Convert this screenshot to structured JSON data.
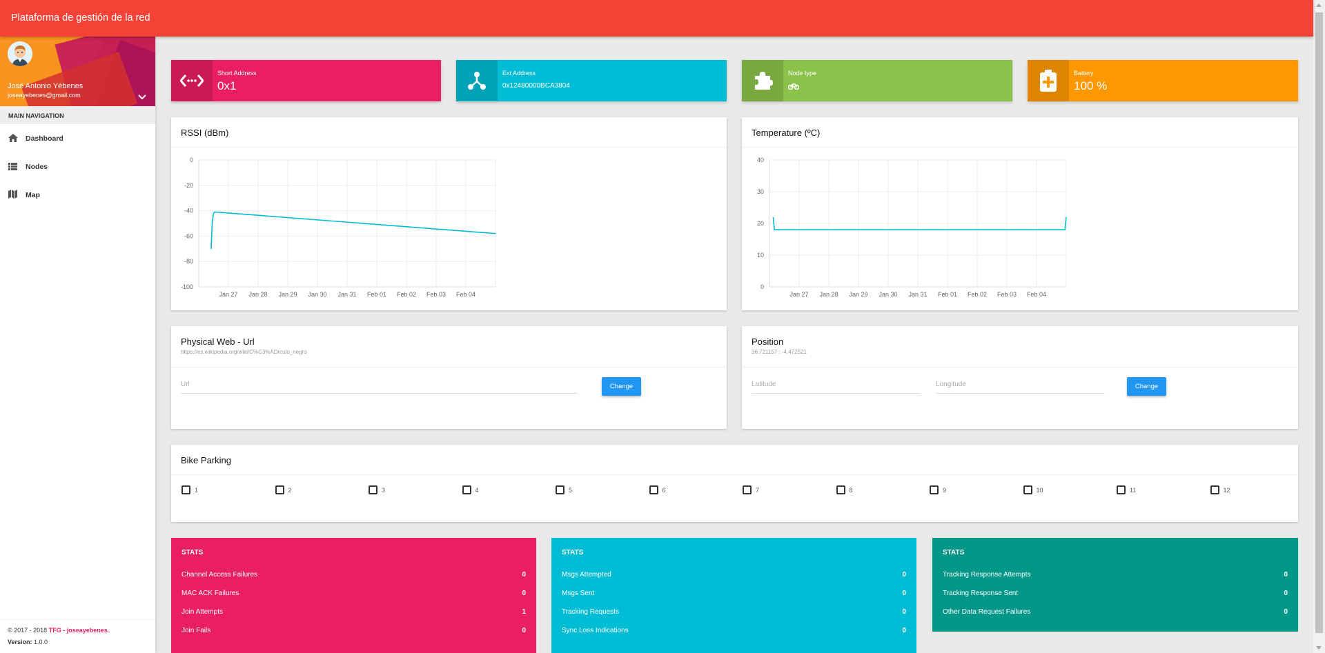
{
  "app": {
    "title": "Plataforma de gestión de la red"
  },
  "user": {
    "name": "José Antonio Yébenes",
    "email": "joseayebenes@gmail.com"
  },
  "nav": {
    "header": "MAIN NAVIGATION",
    "items": [
      {
        "label": "Dashboard",
        "icon": "home-icon"
      },
      {
        "label": "Nodes",
        "icon": "list-icon"
      },
      {
        "label": "Map",
        "icon": "map-icon"
      }
    ]
  },
  "footer": {
    "copyright": "© 2017 - 2018",
    "brand": "TFG - joseayebenes.",
    "version_label": "Version:",
    "version": "1.0.0"
  },
  "info_boxes": [
    {
      "label": "Short Address",
      "value": "0x1",
      "color": "#e91e63",
      "icon": "code-icon"
    },
    {
      "label": "Ext Address",
      "value": "0x12480000BCA3804",
      "color": "#00bcd4",
      "icon": "share-icon"
    },
    {
      "label": "Node type",
      "value": "",
      "color": "#8bc34a",
      "icon": "puzzle-icon",
      "value_icon": "bicycle-icon"
    },
    {
      "label": "Battery",
      "value": "100 %",
      "color": "#ff9800",
      "icon": "battery-icon"
    }
  ],
  "charts": {
    "rssi": {
      "title": "RSSI (dBm)"
    },
    "temperature": {
      "title": "Temperature (ºC)"
    }
  },
  "chart_data": [
    {
      "type": "line",
      "title": "RSSI (dBm)",
      "x_ticks": [
        "Jan 27",
        "Jan 28",
        "Jan 29",
        "Jan 30",
        "Jan 31",
        "Feb 01",
        "Feb 02",
        "Feb 03",
        "Feb 04"
      ],
      "y_ticks": [
        "0",
        "-20",
        "-40",
        "-60",
        "-80",
        "-100"
      ],
      "ylim": [
        -100,
        0
      ],
      "xlim": [
        "2018-01-26",
        "2018-02-05"
      ],
      "grid": true,
      "series": [
        {
          "color": "#00bcd4",
          "points": [
            [
              "2018-01-26 10:00",
              -70
            ],
            [
              "2018-01-26 11:00",
              -48
            ],
            [
              "2018-01-26 12:00",
              -42
            ],
            [
              "2018-01-26 13:00",
              -41
            ],
            [
              "2018-02-05 00:00",
              -58
            ]
          ]
        }
      ]
    },
    {
      "type": "line",
      "title": "Temperature (ºC)",
      "x_ticks": [
        "Jan 27",
        "Jan 28",
        "Jan 29",
        "Jan 30",
        "Jan 31",
        "Feb 01",
        "Feb 02",
        "Feb 03",
        "Feb 04"
      ],
      "y_ticks": [
        "40",
        "30",
        "20",
        "10",
        "0"
      ],
      "ylim": [
        0,
        40
      ],
      "xlim": [
        "2018-01-26",
        "2018-02-05"
      ],
      "grid": true,
      "series": [
        {
          "color": "#00bcd4",
          "points": [
            [
              "2018-01-26 03:00",
              22
            ],
            [
              "2018-01-26 04:00",
              18
            ],
            [
              "2018-02-04 23:00",
              18
            ],
            [
              "2018-02-05 00:00",
              22
            ]
          ]
        }
      ]
    }
  ],
  "physical_web": {
    "title": "Physical Web - Url",
    "current": "https://es.wikipedia.org/wiki/C%C3%ADrculo_negro",
    "placeholder": "Url",
    "button": "Change"
  },
  "position": {
    "title": "Position",
    "current": "36.721157 : -4.472521",
    "lat_placeholder": "Latitude",
    "lon_placeholder": "Longitude",
    "button": "Change"
  },
  "bike_parking": {
    "title": "Bike Parking",
    "slots": [
      "1",
      "2",
      "3",
      "4",
      "5",
      "6",
      "7",
      "8",
      "9",
      "10",
      "11",
      "12"
    ]
  },
  "stats": [
    {
      "header": "STATS",
      "color": "#e91e63",
      "rows": [
        {
          "label": "Channel Access Failures",
          "value": "0"
        },
        {
          "label": "MAC ACK Failures",
          "value": "0"
        },
        {
          "label": "Join Attempts",
          "value": "1"
        },
        {
          "label": "Join Fails",
          "value": "0"
        }
      ]
    },
    {
      "header": "STATS",
      "color": "#00bcd4",
      "rows": [
        {
          "label": "Msgs Attempted",
          "value": "0"
        },
        {
          "label": "Msgs Sent",
          "value": "0"
        },
        {
          "label": "Tracking Requests",
          "value": "0"
        },
        {
          "label": "Sync Loss Indications",
          "value": "0"
        }
      ]
    },
    {
      "header": "STATS",
      "color": "#009688",
      "rows": [
        {
          "label": "Tracking Response Attempts",
          "value": "0"
        },
        {
          "label": "Tracking Response Sent",
          "value": "0"
        },
        {
          "label": "Other Data Request Failures",
          "value": "0"
        }
      ]
    }
  ]
}
